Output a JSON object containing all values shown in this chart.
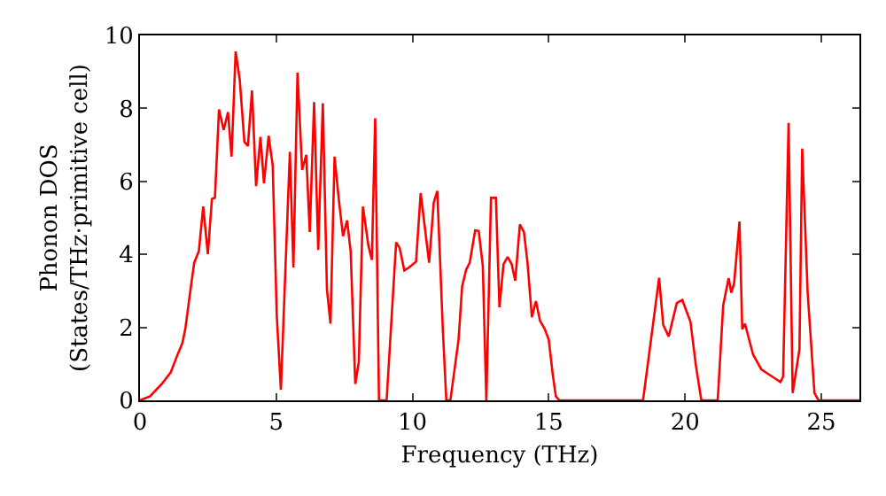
{
  "chart_data": {
    "type": "line",
    "xlabel": "Frequency (THz)",
    "ylabel": "Phonon DOS\n(States/THz·primitive cell)",
    "xlim": [
      0,
      26.4
    ],
    "ylim": [
      0,
      10
    ],
    "xticks": [
      0,
      5,
      10,
      15,
      20,
      25
    ],
    "yticks": [
      0,
      2,
      4,
      6,
      8,
      10
    ],
    "grid": false,
    "marker": "none",
    "line_style": "solid",
    "series": [
      {
        "color": "#ff0000",
        "x": [
          0,
          0.37,
          0.8,
          1.13,
          1.34,
          1.56,
          1.67,
          1.84,
          1.99,
          2.16,
          2.32,
          2.49,
          2.64,
          2.75,
          2.9,
          3.07,
          3.23,
          3.36,
          3.51,
          3.66,
          3.83,
          3.96,
          4.11,
          4.26,
          4.42,
          4.55,
          4.72,
          4.87,
          5.02,
          5.17,
          5.5,
          5.63,
          5.78,
          5.95,
          6.1,
          6.23,
          6.39,
          6.54,
          6.71,
          6.86,
          6.99,
          7.14,
          7.29,
          7.45,
          7.6,
          7.73,
          7.9,
          8.03,
          8.18,
          8.38,
          8.51,
          8.63,
          8.77,
          9.05,
          9.4,
          9.53,
          9.7,
          9.87,
          10.13,
          10.3,
          10.61,
          10.78,
          10.91,
          11.11,
          11.24,
          11.39,
          11.69,
          11.82,
          11.97,
          12.1,
          12.3,
          12.43,
          12.58,
          12.71,
          12.88,
          13.06,
          13.19,
          13.34,
          13.49,
          13.64,
          13.77,
          13.94,
          14.09,
          14.22,
          14.38,
          14.53,
          14.68,
          14.85,
          15.0,
          15.15,
          15.26,
          15.39,
          18.46,
          19.05,
          19.2,
          19.4,
          19.7,
          19.9,
          20.2,
          20.4,
          20.6,
          21.2,
          21.4,
          21.6,
          21.7,
          21.8,
          22.0,
          22.1,
          22.2,
          22.5,
          22.8,
          23.3,
          23.5,
          23.6,
          23.8,
          23.95,
          24.2,
          24.3,
          24.5,
          24.75,
          24.9,
          26.4
        ],
        "values": [
          0,
          0.11,
          0.45,
          0.77,
          1.18,
          1.58,
          1.99,
          2.96,
          3.77,
          4.09,
          5.31,
          4.01,
          5.52,
          5.55,
          7.97,
          7.41,
          7.9,
          6.68,
          9.56,
          8.79,
          7.09,
          6.97,
          8.49,
          5.87,
          7.22,
          5.95,
          7.25,
          6.44,
          2.31,
          0.29,
          6.81,
          3.64,
          8.98,
          6.31,
          6.73,
          4.61,
          8.17,
          4.12,
          8.14,
          3.04,
          2.1,
          6.68,
          5.55,
          4.5,
          4.93,
          4.09,
          0.45,
          1.05,
          5.31,
          4.25,
          3.85,
          7.73,
          0,
          0,
          4.33,
          4.17,
          3.56,
          3.64,
          3.8,
          5.68,
          3.77,
          5.42,
          5.74,
          1.99,
          0,
          0,
          1.66,
          3.12,
          3.58,
          3.77,
          4.66,
          4.64,
          3.68,
          0,
          5.55,
          5.55,
          2.55,
          3.73,
          3.93,
          3.73,
          3.28,
          4.82,
          4.61,
          3.77,
          2.28,
          2.72,
          2.18,
          1.96,
          1.66,
          0.69,
          0.11,
          0,
          0,
          3.36,
          2.07,
          1.75,
          2.67,
          2.75,
          2.15,
          0.95,
          0,
          0,
          2.6,
          3.35,
          2.95,
          3.2,
          4.9,
          1.95,
          2.1,
          1.25,
          0.85,
          0.6,
          0.5,
          0.65,
          7.6,
          0.2,
          1.4,
          6.9,
          2.95,
          0.2,
          0,
          0
        ]
      }
    ]
  }
}
